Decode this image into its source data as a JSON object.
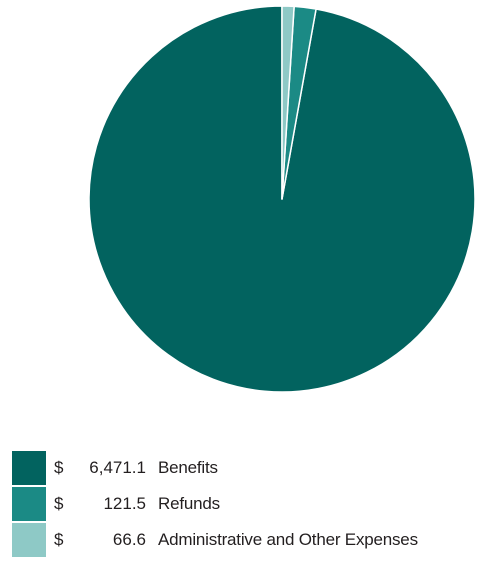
{
  "chart_data": {
    "type": "pie",
    "currency_symbol": "$",
    "slices": [
      {
        "label": "Benefits",
        "value": 6471.1,
        "value_text": "6,471.1",
        "color": "#02635f"
      },
      {
        "label": "Refunds",
        "value": 121.5,
        "value_text": "121.5",
        "color": "#1b8a85"
      },
      {
        "label": "Administrative and Other Expenses",
        "value": 66.6,
        "value_text": "66.6",
        "color": "#8ec9c6"
      }
    ],
    "start_angle_deg": 0,
    "direction": "counterclockwise",
    "legend_position": "bottom-left"
  }
}
